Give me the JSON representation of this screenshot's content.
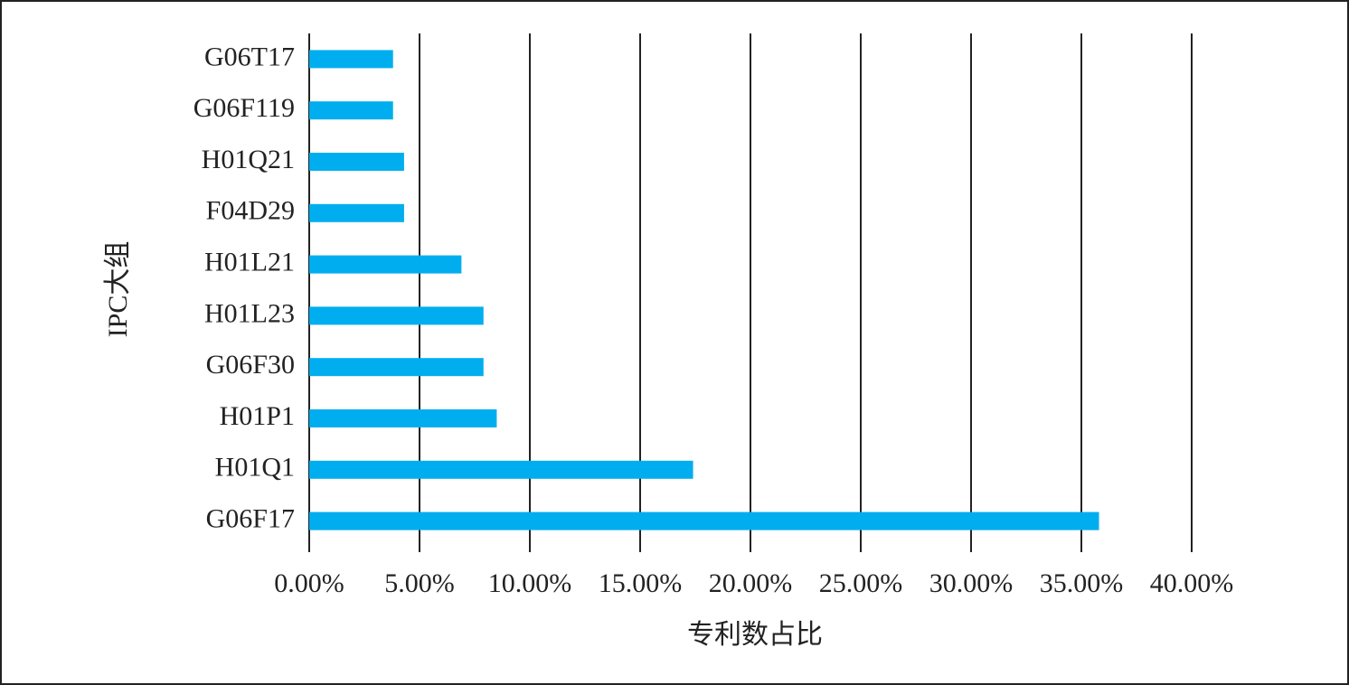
{
  "chart_data": {
    "type": "bar",
    "orientation": "horizontal",
    "x_label": "专利数占比",
    "y_label": "IPC大组",
    "categories": [
      "G06T17",
      "G06F119",
      "H01Q21",
      "F04D29",
      "H01L21",
      "H01L23",
      "G06F30",
      "H01P1",
      "H01Q1",
      "G06F17"
    ],
    "values": [
      3.8,
      3.8,
      4.3,
      4.3,
      6.9,
      7.9,
      7.9,
      8.5,
      17.4,
      35.8
    ],
    "color": "#00aeef",
    "xlim": [
      0,
      40
    ],
    "xticks": [
      {
        "value": 0,
        "label": "0.00%"
      },
      {
        "value": 5,
        "label": "5.00%"
      },
      {
        "value": 10,
        "label": "10.00%"
      },
      {
        "value": 15,
        "label": "15.00%"
      },
      {
        "value": 20,
        "label": "20.00%"
      },
      {
        "value": 25,
        "label": "25.00%"
      },
      {
        "value": 30,
        "label": "30.00%"
      },
      {
        "value": 35,
        "label": "35.00%"
      },
      {
        "value": 40,
        "label": "40.00%"
      }
    ],
    "grid": true
  }
}
